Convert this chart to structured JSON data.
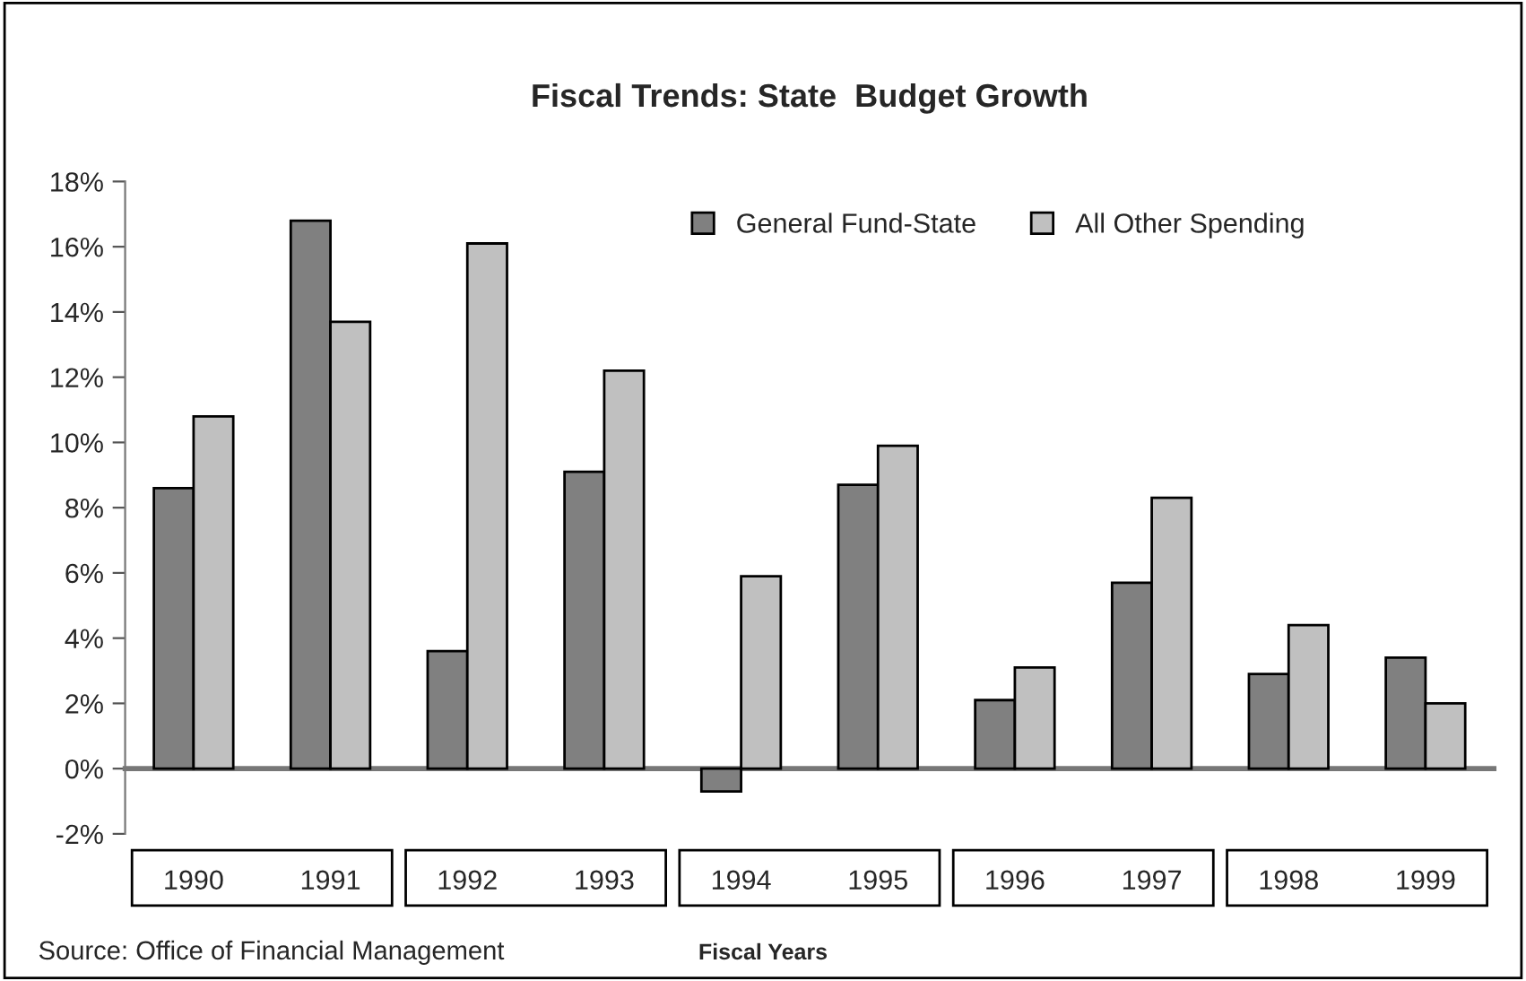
{
  "chart_data": {
    "type": "bar",
    "title": "Fiscal Trends: State  Budget Growth",
    "xlabel": "Fiscal Years",
    "categories": [
      "1990",
      "1991",
      "1992",
      "1993",
      "1994",
      "1995",
      "1996",
      "1997",
      "1998",
      "1999"
    ],
    "series": [
      {
        "name": "General Fund-State",
        "color": "#808080",
        "values": [
          8.6,
          16.8,
          3.6,
          9.1,
          -0.7,
          8.7,
          2.1,
          5.7,
          2.9,
          3.4
        ]
      },
      {
        "name": "All Other Spending",
        "color": "#c0c0c0",
        "values": [
          10.8,
          13.7,
          16.1,
          12.2,
          5.9,
          9.9,
          3.1,
          8.3,
          4.4,
          2.0
        ]
      }
    ],
    "ylim": [
      -2,
      18
    ],
    "yticks": [
      {
        "value": -2,
        "label": "-2%"
      },
      {
        "value": 0,
        "label": "0%"
      },
      {
        "value": 2,
        "label": "2%"
      },
      {
        "value": 4,
        "label": "4%"
      },
      {
        "value": 6,
        "label": "6%"
      },
      {
        "value": 8,
        "label": "8%"
      },
      {
        "value": 10,
        "label": "10%"
      },
      {
        "value": 12,
        "label": "12%"
      },
      {
        "value": 14,
        "label": "14%"
      },
      {
        "value": 16,
        "label": "16%"
      },
      {
        "value": 18,
        "label": "18%"
      }
    ],
    "legend": "top right",
    "annotations": [
      "Source: Office of Financial Management"
    ]
  }
}
